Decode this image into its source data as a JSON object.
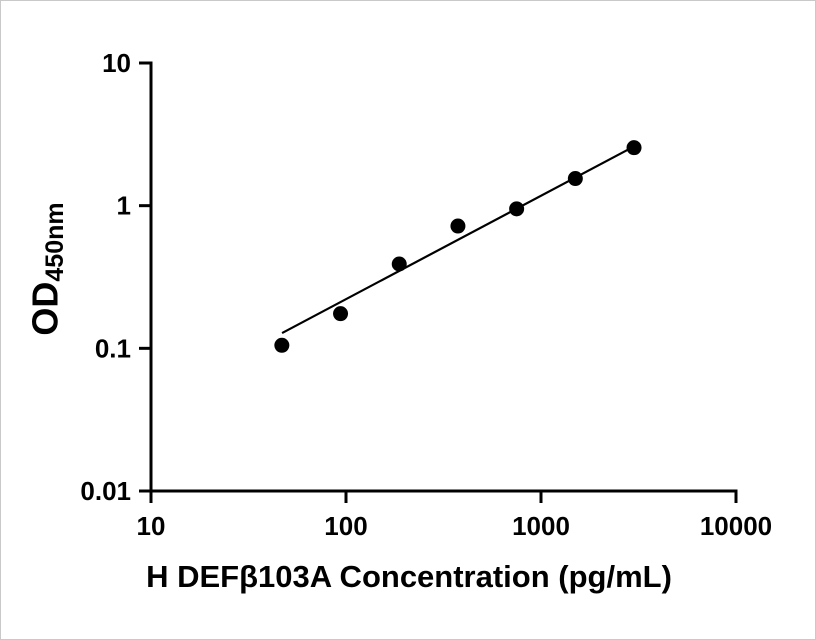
{
  "chart_data": {
    "type": "scatter",
    "title": "",
    "xlabel": "H DEFβ103A Concentration (pg/mL)",
    "ylabel_main": "OD",
    "ylabel_sub": "450nm",
    "x_scale": "log",
    "y_scale": "log",
    "xlim": [
      10,
      10000
    ],
    "ylim": [
      0.01,
      10
    ],
    "grid": false,
    "legend": "none",
    "x_ticks": [
      {
        "value": 10,
        "label": "10"
      },
      {
        "value": 100,
        "label": "100"
      },
      {
        "value": 1000,
        "label": "1000"
      },
      {
        "value": 10000,
        "label": "10000"
      }
    ],
    "y_ticks": [
      {
        "value": 0.01,
        "label": "0.01"
      },
      {
        "value": 0.1,
        "label": "0.1"
      },
      {
        "value": 1,
        "label": "1"
      },
      {
        "value": 10,
        "label": "10"
      }
    ],
    "points": [
      {
        "x": 46.88,
        "y": 0.105
      },
      {
        "x": 93.75,
        "y": 0.175
      },
      {
        "x": 187.5,
        "y": 0.39
      },
      {
        "x": 375,
        "y": 0.72
      },
      {
        "x": 750,
        "y": 0.95
      },
      {
        "x": 1500,
        "y": 1.55
      },
      {
        "x": 3000,
        "y": 2.55
      }
    ],
    "trendline": {
      "x1": 47,
      "y1": 0.128,
      "x2": 3000,
      "y2": 2.6
    },
    "marker_color": "#000000",
    "line_color": "#000000",
    "axis_color": "#000000",
    "tick_label_color": "#000000"
  }
}
